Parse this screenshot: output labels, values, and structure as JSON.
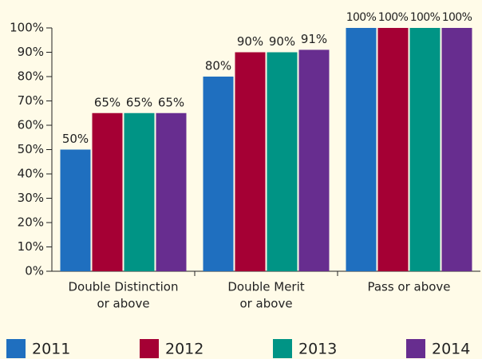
{
  "chart_data": {
    "type": "bar",
    "categories": [
      [
        "Double Distinction",
        "or above"
      ],
      [
        "Double Merit",
        "or above"
      ],
      [
        "Pass or above"
      ]
    ],
    "series": [
      {
        "name": "2011",
        "color": "#1f6fbf",
        "values": [
          50,
          80,
          100
        ],
        "value_labels": [
          "50%",
          "80%",
          "100%"
        ]
      },
      {
        "name": "2012",
        "color": "#a50034",
        "values": [
          65,
          90,
          100
        ],
        "value_labels": [
          "65%",
          "90%",
          "100%"
        ]
      },
      {
        "name": "2013",
        "color": "#009485",
        "values": [
          65,
          90,
          100
        ],
        "value_labels": [
          "65%",
          "90%",
          "100%"
        ]
      },
      {
        "name": "2014",
        "color": "#672d8f",
        "values": [
          65,
          91,
          100
        ],
        "value_labels": [
          "65%",
          "91%",
          "100%"
        ]
      }
    ],
    "ylim": [
      0,
      100
    ],
    "yticks": [
      {
        "value": 0,
        "label": "0%"
      },
      {
        "value": 10,
        "label": "10%"
      },
      {
        "value": 20,
        "label": "20%"
      },
      {
        "value": 30,
        "label": "30%"
      },
      {
        "value": 40,
        "label": "40%"
      },
      {
        "value": 50,
        "label": "50%"
      },
      {
        "value": 60,
        "label": "60%"
      },
      {
        "value": 70,
        "label": "70%"
      },
      {
        "value": 80,
        "label": "80%"
      },
      {
        "value": 90,
        "label": "90%"
      },
      {
        "value": 100,
        "label": "100%"
      }
    ],
    "legend": "bottom"
  }
}
